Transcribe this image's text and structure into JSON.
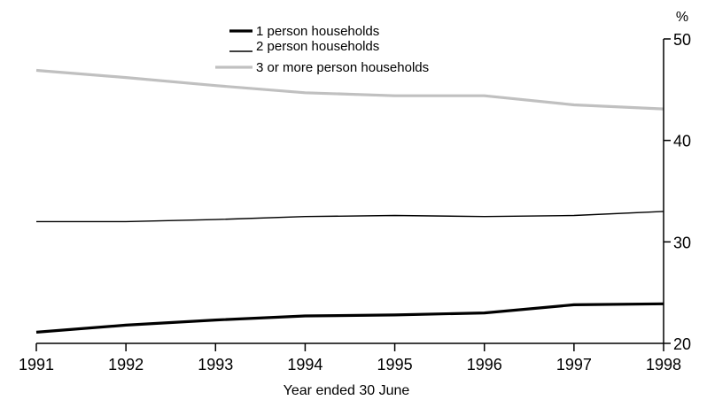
{
  "chart_data": {
    "type": "line",
    "x": [
      1991,
      1992,
      1993,
      1994,
      1995,
      1996,
      1997,
      1998
    ],
    "x_tick_labels": [
      "1991",
      "1992",
      "1993",
      "1994",
      "1995",
      "1996",
      "1997",
      "1998"
    ],
    "xlabel": "Year ended 30 June",
    "ylabel": "%",
    "ylim": [
      20,
      50
    ],
    "y_ticks": [
      20,
      30,
      40,
      50
    ],
    "y_tick_labels": [
      "20",
      "30",
      "40",
      "50"
    ],
    "y_axis_position": "right",
    "grid": false,
    "legend_position": "top-center",
    "series": [
      {
        "name": "1 person households",
        "values": [
          21.1,
          21.8,
          22.3,
          22.7,
          22.8,
          23.0,
          23.8,
          23.9
        ],
        "color": "#000000",
        "line_weight": "thick"
      },
      {
        "name": "2 person households",
        "values": [
          32.0,
          32.0,
          32.2,
          32.5,
          32.6,
          32.5,
          32.6,
          33.0
        ],
        "color": "#000000",
        "line_weight": "thin"
      },
      {
        "name": "3 or more person households",
        "values": [
          46.9,
          46.2,
          45.4,
          44.7,
          44.4,
          44.4,
          43.5,
          43.1
        ],
        "color": "#c0c0c0",
        "line_weight": "thick"
      }
    ]
  }
}
